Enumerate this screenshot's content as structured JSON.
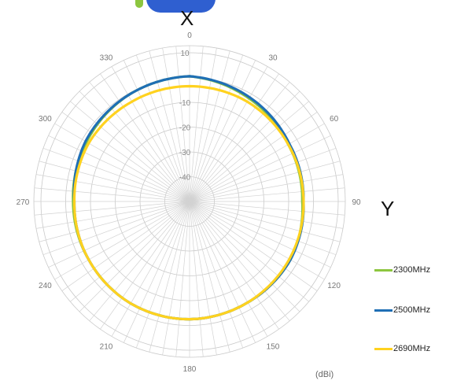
{
  "chart_data": {
    "type": "polar_line",
    "subtitle_top": "X",
    "subtitle_right": "Y",
    "unit_label": "(dBi)",
    "angle_ticks": [
      "0",
      "30",
      "60",
      "90",
      "120",
      "150",
      "180",
      "210",
      "240",
      "270",
      "300",
      "330"
    ],
    "radial_ticks": [
      10,
      -10,
      -20,
      -30,
      -40
    ],
    "radial_range": [
      -50,
      10
    ],
    "series": [
      {
        "name": "2300MHz",
        "color": "#8dc63f",
        "angles": [
          0,
          30,
          60,
          90,
          120,
          150,
          180,
          210,
          240,
          270,
          300,
          330
        ],
        "values": [
          0.5,
          -2,
          -4,
          -4.5,
          -3,
          -3,
          -2.5,
          -2.5,
          -3,
          -3,
          -2,
          -0.5
        ]
      },
      {
        "name": "2500MHz",
        "color": "#1f6fb5",
        "angles": [
          0,
          30,
          60,
          90,
          120,
          150,
          180,
          210,
          240,
          270,
          300,
          330
        ],
        "values": [
          0.5,
          -1.5,
          -3.5,
          -4,
          -3,
          -3,
          -2.5,
          -2.5,
          -3,
          -3.5,
          -1.5,
          -0.5
        ]
      },
      {
        "name": "2690MHz",
        "color": "#ffd21f",
        "angles": [
          0,
          30,
          60,
          90,
          120,
          150,
          180,
          210,
          240,
          270,
          300,
          330
        ],
        "values": [
          -3.5,
          -3.5,
          -4,
          -4,
          -3.5,
          -3,
          -2.5,
          -2.5,
          -3,
          -3.5,
          -3,
          -3.5
        ]
      }
    ]
  },
  "legend": {
    "items": [
      {
        "label": "2300MHz",
        "color": "#8dc63f"
      },
      {
        "label": "2500MHz",
        "color": "#1f6fb5"
      },
      {
        "label": "2690MHz",
        "color": "#ffd21f"
      }
    ]
  }
}
